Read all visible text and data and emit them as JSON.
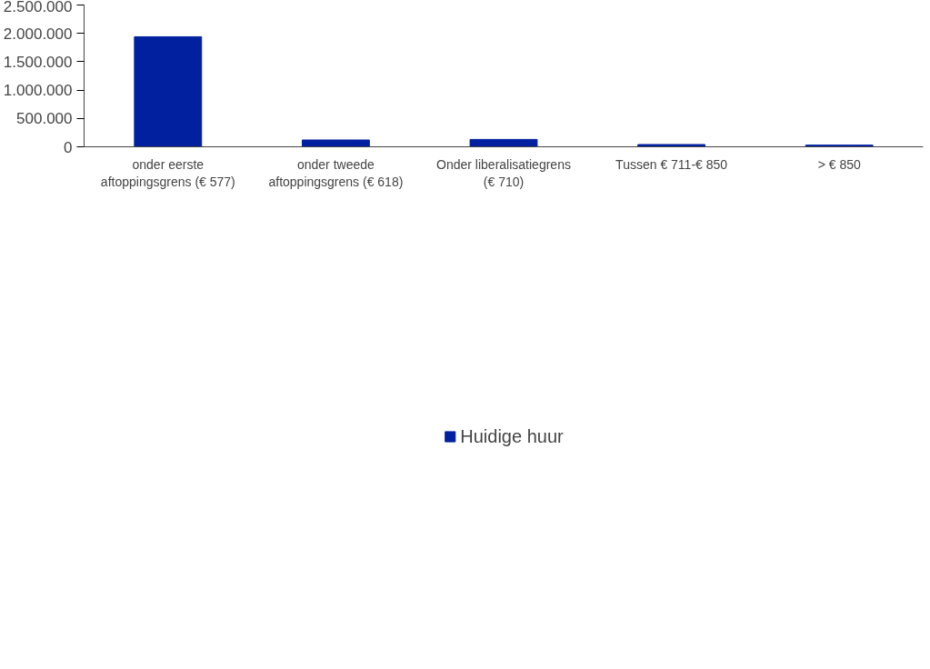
{
  "chart_data": {
    "type": "bar",
    "categories": [
      "onder eerste\naftoppingsgrens (€ 577)",
      "onder tweede\naftoppingsgrens (€ 618)",
      "Onder liberalisatiegrens\n(€ 710)",
      "Tussen € 711-€ 850",
      "> € 850"
    ],
    "series": [
      {
        "name": "Huidige huur",
        "color": "#00209f",
        "values": [
          1940000,
          120000,
          130000,
          40000,
          30000
        ]
      }
    ],
    "ylim": [
      0,
      2500000
    ],
    "yticks": [
      {
        "value": 0,
        "label": "0"
      },
      {
        "value": 500000,
        "label": "500.000"
      },
      {
        "value": 1000000,
        "label": "1.000.000"
      },
      {
        "value": 1500000,
        "label": "1.500.000"
      },
      {
        "value": 2000000,
        "label": "2.000.000"
      },
      {
        "value": 2500000,
        "label": "2.500.000"
      }
    ],
    "grid": false,
    "legend": "bottom"
  }
}
